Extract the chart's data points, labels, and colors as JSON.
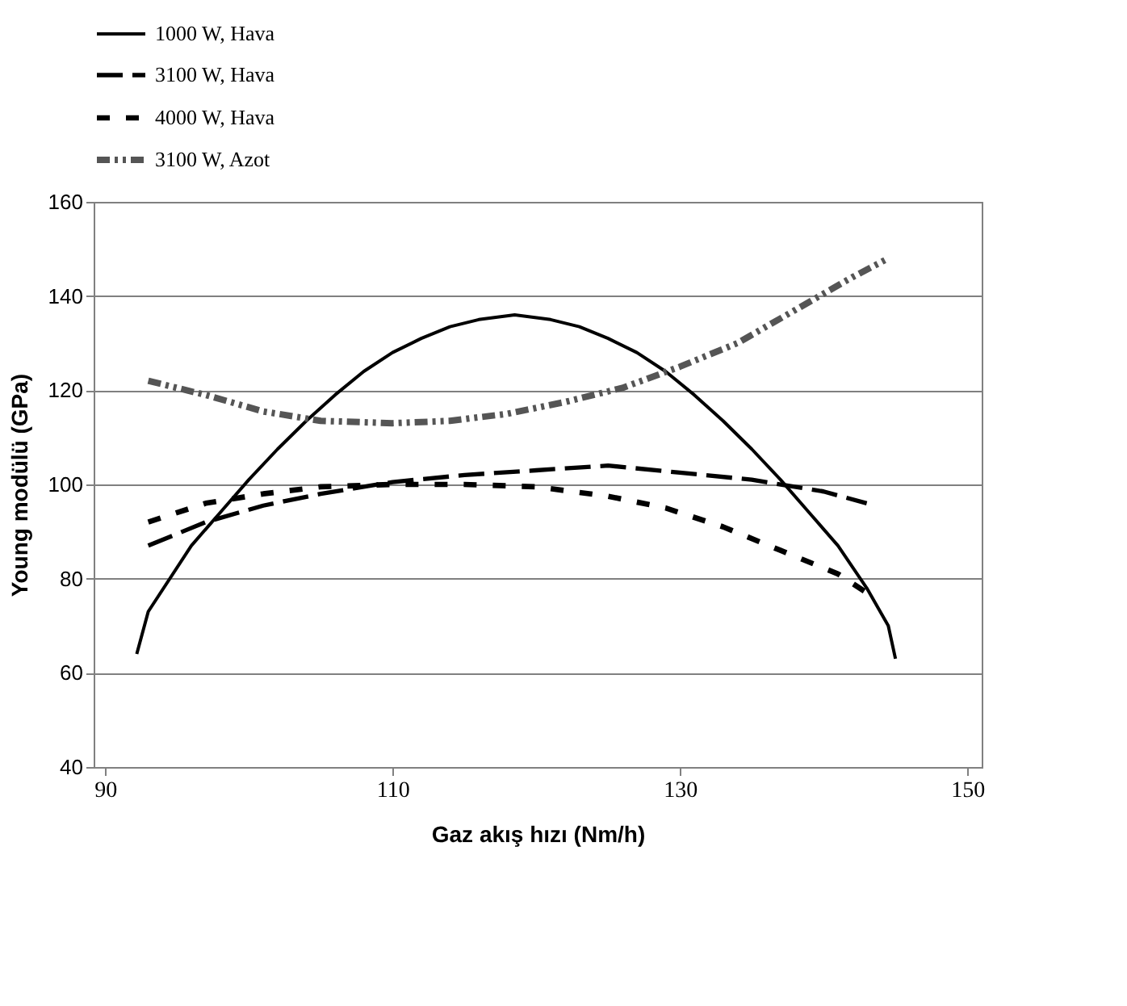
{
  "chart_data": {
    "type": "line",
    "xlabel": "Gaz akış hızı (Nm/h)",
    "ylabel": "Young modülü (GPa)",
    "xlim": [
      89.2,
      151
    ],
    "xticks": [
      90,
      110,
      130,
      150
    ],
    "ylim": [
      40,
      160
    ],
    "yticks": [
      40,
      60,
      80,
      100,
      120,
      140,
      160
    ],
    "grid": "y",
    "legend": "top",
    "series": [
      {
        "name": "1000 W, Hava",
        "color": "#000000",
        "line_style": "solid",
        "x": [
          92.2,
          93,
          96,
          98,
          100,
          102,
          104,
          106,
          108,
          110,
          112,
          114,
          116,
          118.5,
          121,
          123,
          125,
          127,
          129,
          131,
          133,
          135,
          137,
          139,
          141,
          143,
          144.5,
          145
        ],
        "values": [
          64,
          73,
          87,
          94,
          101,
          107.5,
          113.5,
          119,
          124,
          128,
          131,
          133.5,
          135,
          136,
          135,
          133.5,
          131,
          128,
          124,
          119,
          113.5,
          107.5,
          101,
          94,
          87,
          78,
          70,
          63
        ]
      },
      {
        "name": "3100 W, Hava",
        "color": "#000000",
        "line_style": "dashed",
        "x": [
          93,
          97,
          101,
          105,
          110,
          115,
          120,
          125,
          130,
          135,
          140,
          143
        ],
        "values": [
          87,
          92,
          95.5,
          98,
          100.5,
          102,
          103,
          104,
          102.5,
          101,
          98.5,
          96
        ]
      },
      {
        "name": "4000 W, Hava",
        "color": "#000000",
        "line_style": "dashed",
        "x": [
          93,
          97,
          101,
          105,
          110,
          115,
          120,
          125,
          129,
          133,
          137,
          141,
          143
        ],
        "values": [
          92,
          96,
          98,
          99.5,
          100,
          100,
          99.5,
          97.5,
          95,
          91,
          86,
          81,
          77
        ]
      },
      {
        "name": "3100 W, Azot",
        "color": "#555555",
        "line_style": "dotted",
        "x": [
          93,
          97,
          101,
          105,
          110,
          114,
          118,
          122,
          126,
          130,
          134,
          138,
          142,
          144.5
        ],
        "values": [
          122,
          119,
          115.5,
          113.5,
          113,
          113.5,
          115,
          117.5,
          120.5,
          125,
          130,
          137,
          144,
          148
        ]
      }
    ]
  }
}
